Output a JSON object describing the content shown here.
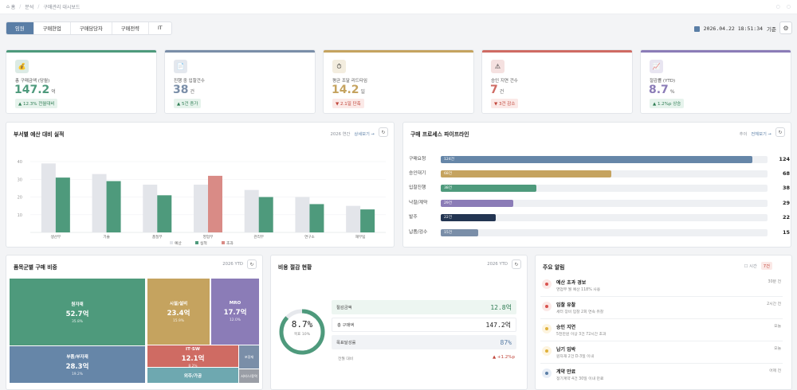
{
  "breadcrumb": {
    "home": "홈",
    "section": "분석",
    "page": "구매관리 대시보드"
  },
  "tabs": [
    "임원",
    "구매현업",
    "구매담당자",
    "구매전략",
    "IT"
  ],
  "active_tab": 0,
  "clock": {
    "datetime": "2026.04.22 18:51:34",
    "suffix": "기준"
  },
  "colors": {
    "accent": "#5a7ea6",
    "green": "#4e9a7c",
    "gold": "#c5a35f",
    "red": "#cf6b63",
    "purple": "#8b7cb7",
    "navy": "#233552",
    "slate": "#7a8ea8"
  },
  "kpis": [
    {
      "icon": "money-bag-icon",
      "glyph": "💰",
      "label": "총 구매금액 (당월)",
      "value": "147.2",
      "unit": "억",
      "change": "▲ 12.3% 전월대비",
      "trend": "up",
      "color": "#4e9a7c"
    },
    {
      "icon": "document-icon",
      "glyph": "📄",
      "label": "진행 중 입찰건수",
      "value": "38",
      "unit": "건",
      "change": "▲ 5건 증가",
      "trend": "up",
      "color": "#7a8ea8"
    },
    {
      "icon": "stopwatch-icon",
      "glyph": "⏱",
      "label": "평균 조달 리드타임",
      "value": "14.2",
      "unit": "일",
      "change": "▼ 2.1일 단축",
      "trend": "down",
      "color": "#c5a35f"
    },
    {
      "icon": "warning-icon",
      "glyph": "⚠",
      "label": "승인 지연 건수",
      "value": "7",
      "unit": "건",
      "change": "▼ 3건 감소",
      "trend": "down",
      "color": "#cf6b63"
    },
    {
      "icon": "chart-icon",
      "glyph": "📈",
      "label": "절감률 (YTD)",
      "value": "8.7",
      "unit": "%",
      "change": "▲ 1.2%p 상승",
      "trend": "up",
      "color": "#8b7cb7"
    }
  ],
  "budget_panel": {
    "title": "부서별 예산 대비 실적",
    "meta": "2026 연간",
    "link": "상세보기 →",
    "legend": [
      "예산",
      "실적",
      "초과"
    ]
  },
  "chart_data": {
    "type": "bar",
    "categories": [
      "생산부",
      "기술",
      "품질부",
      "영업부",
      "관리부",
      "연구소",
      "재무팀"
    ],
    "y_ticks": [
      "40",
      "30",
      "20",
      "10"
    ],
    "ylim": [
      0,
      45
    ],
    "series": [
      {
        "name": "예산",
        "values": [
          39,
          33,
          27,
          27,
          24,
          20,
          15
        ]
      },
      {
        "name": "실적",
        "values": [
          31,
          29,
          21,
          32,
          20,
          16,
          13
        ]
      }
    ],
    "over_index": 3,
    "colors": {
      "budget": "#e3e5ea",
      "actual": "#4e9a7c",
      "over": "#d98b86"
    }
  },
  "pipeline": {
    "title": "구매 프로세스 파이프라인",
    "meta": "추이",
    "link": "전체보기 →",
    "max": 130,
    "rows": [
      {
        "label": "구매요청",
        "tag": "124건",
        "value": 124,
        "color": "#6686a8"
      },
      {
        "label": "승인대기",
        "tag": "68건",
        "value": 68,
        "color": "#c5a35f"
      },
      {
        "label": "입찰진행",
        "tag": "38건",
        "value": 38,
        "color": "#4e9a7c"
      },
      {
        "label": "낙찰/계약",
        "tag": "29건",
        "value": 29,
        "color": "#8b7cb7"
      },
      {
        "label": "발주",
        "tag": "22건",
        "value": 22,
        "color": "#233552"
      },
      {
        "label": "납품/검수",
        "tag": "15건",
        "value": 15,
        "color": "#7a8ea8"
      }
    ]
  },
  "treemap": {
    "title": "품목군별 구매 비중",
    "meta": "2026 YTD",
    "cells": [
      {
        "name": "원자재",
        "value": "52.7억",
        "pct": "35.8%",
        "color": "#4e9a7c"
      },
      {
        "name": "부품/부자재",
        "value": "28.3억",
        "pct": "19.2%",
        "color": "#6686a8"
      },
      {
        "name": "시설/설비",
        "value": "23.4억",
        "pct": "15.9%",
        "color": "#c5a35f"
      },
      {
        "name": "MRO",
        "value": "17.7억",
        "pct": "12.0%",
        "color": "#8b7cb7"
      },
      {
        "name": "IT·SW",
        "value": "12.1억",
        "pct": "8.2%",
        "color": "#cf6b63"
      },
      {
        "name": "외주/가공",
        "value": "",
        "pct": "",
        "color": "#6ea8b0"
      },
      {
        "name": "포장재",
        "value": "",
        "pct": "",
        "color": "#7a8ea8"
      },
      {
        "name": "서비스/용역",
        "value": "",
        "pct": "",
        "color": "#9a9ea6"
      }
    ]
  },
  "savings": {
    "title": "비용 절감 현황",
    "meta": "2026 YTD",
    "donut": {
      "value": "8.7%",
      "label": "목표 10%",
      "fraction": 0.87
    },
    "rows": [
      {
        "key": "절감금액",
        "value": "12.8억"
      },
      {
        "key": "총 구매액",
        "value": "147.2억"
      },
      {
        "key": "목표달성률",
        "value": "87%"
      }
    ],
    "footer": {
      "key": "전월 대비",
      "value": "▲ +1.2%p"
    }
  },
  "alerts": {
    "title": "주요 알림",
    "filter": "시간",
    "count": "7건",
    "items": [
      {
        "title": "예산 초과 경보",
        "desc": "영업부 월 예산 118% 사용",
        "time": "30분 전",
        "color": "#d9534f",
        "bg": "#fbe9e7"
      },
      {
        "title": "입찰 유찰",
        "desc": "세터 장비 입찰 2회 연속 유찰",
        "time": "2시간 전",
        "color": "#d9534f",
        "bg": "#fbe9e7"
      },
      {
        "title": "승인 지연",
        "desc": "5천만원 이상 3건 72시간 초과",
        "time": "오늘",
        "color": "#e0b13c",
        "bg": "#fdf4df"
      },
      {
        "title": "납기 임박",
        "desc": "원자재 2건 D-3일 이내",
        "time": "오늘",
        "color": "#e0b13c",
        "bg": "#fdf4df"
      },
      {
        "title": "계약 만료",
        "desc": "정기계약 4건 30일 이내 만료",
        "time": "어제 전",
        "color": "#5a7ea6",
        "bg": "#e8eef6"
      }
    ]
  }
}
